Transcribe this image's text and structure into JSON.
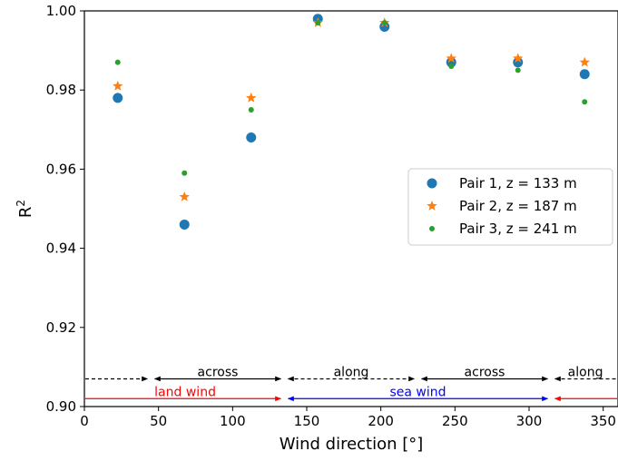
{
  "chart_data": {
    "type": "scatter",
    "xlabel": "Wind direction [°]",
    "ylabel_base": "R",
    "ylabel_sup": "2",
    "xlim": [
      0,
      360
    ],
    "ylim": [
      0.9,
      1.0
    ],
    "xticks": [
      0,
      50,
      100,
      150,
      200,
      250,
      300,
      350
    ],
    "xtick_labels": [
      "0",
      "50",
      "100",
      "150",
      "200",
      "250",
      "300",
      "350"
    ],
    "yticks": [
      0.9,
      0.92,
      0.94,
      0.96,
      0.98,
      1.0
    ],
    "ytick_labels": [
      "0.90",
      "0.92",
      "0.94",
      "0.96",
      "0.98",
      "1.00"
    ],
    "grid": false,
    "legend_position": "center-right",
    "series": [
      {
        "name": "Pair 1, z = 133 m",
        "marker": "circle",
        "color": "#1f77b4",
        "x": [
          22.5,
          67.5,
          112.5,
          157.5,
          202.5,
          247.5,
          292.5,
          337.5
        ],
        "y": [
          0.978,
          0.946,
          0.968,
          0.998,
          0.996,
          0.987,
          0.987,
          0.984
        ]
      },
      {
        "name": "Pair 2, z = 187 m",
        "marker": "star",
        "color": "#ff7f0e",
        "x": [
          22.5,
          67.5,
          112.5,
          157.5,
          202.5,
          247.5,
          292.5,
          337.5
        ],
        "y": [
          0.981,
          0.953,
          0.978,
          0.997,
          0.997,
          0.988,
          0.988,
          0.987
        ]
      },
      {
        "name": "Pair 3, z = 241 m",
        "marker": "dot",
        "color": "#2ca02c",
        "x": [
          22.5,
          67.5,
          112.5,
          157.5,
          202.5,
          247.5,
          292.5,
          337.5
        ],
        "y": [
          0.987,
          0.959,
          0.975,
          0.997,
          0.997,
          0.986,
          0.985,
          0.977
        ]
      }
    ],
    "annotations": {
      "black_color": "#000000",
      "red_color": "#ff0000",
      "blue_color": "#0000ff",
      "row_top_y": 0.907,
      "row_bottom_y": 0.902,
      "black_arrows": [
        {
          "x1": 0,
          "x2": 45,
          "style": "dashed",
          "heads": "end"
        },
        {
          "x1": 45,
          "x2": 135,
          "style": "solid",
          "heads": "both"
        },
        {
          "x1": 135,
          "x2": 225,
          "style": "dashed",
          "heads": "both"
        },
        {
          "x1": 225,
          "x2": 315,
          "style": "solid",
          "heads": "both"
        },
        {
          "x1": 315,
          "x2": 360,
          "style": "dashed",
          "heads": "start"
        }
      ],
      "black_labels": [
        {
          "text": "across",
          "x": 90
        },
        {
          "text": "along",
          "x": 180
        },
        {
          "text": "across",
          "x": 270
        },
        {
          "text": "along",
          "x": 338
        }
      ],
      "red_arrows": [
        {
          "x1": 0,
          "x2": 135,
          "heads": "end"
        },
        {
          "x1": 315,
          "x2": 360,
          "heads": "start"
        }
      ],
      "red_label": {
        "text": "land wind",
        "x": 68
      },
      "blue_arrow": {
        "x1": 135,
        "x2": 315,
        "heads": "both"
      },
      "blue_label": {
        "text": "sea wind",
        "x": 225
      }
    }
  }
}
